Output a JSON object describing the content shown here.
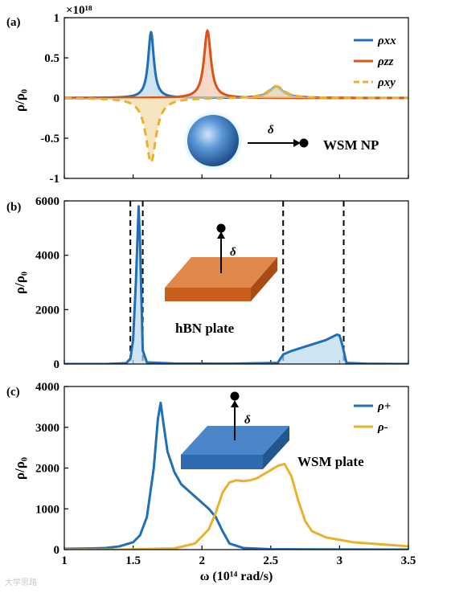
{
  "xlabel": "ω (10¹⁴ rad/s)",
  "watermark": "大学思路",
  "colors": {
    "blue": "#1f6fb8",
    "orange": "#d95319",
    "yellow": "#e8b12e",
    "blue_fill": "#b9d8ee",
    "orange_fill": "#f4c6ad"
  },
  "chart_data": [
    {
      "type": "line",
      "panel_label": "(a)",
      "ylabel": "ρ/ρ₀",
      "scale_label": "×10¹⁸",
      "xlim": [
        1,
        3.5
      ],
      "ylim": [
        -1,
        1
      ],
      "yticks": [
        -1,
        -0.5,
        0,
        0.5,
        1
      ],
      "ytick_labels": [
        "-1",
        "-0.5",
        "0",
        "0.5",
        "1"
      ],
      "legend_position": "top-right",
      "series": [
        {
          "name": "ρxx",
          "color": "#1f6fb8",
          "style": "solid",
          "fill": true,
          "peaks": [
            {
              "x0": 1.63,
              "amp": 0.82,
              "gamma": 0.025
            },
            {
              "x0": 2.54,
              "amp": 0.14,
              "gamma": 0.06
            }
          ]
        },
        {
          "name": "ρzz",
          "color": "#d95319",
          "style": "solid",
          "fill": true,
          "peaks": [
            {
              "x0": 2.04,
              "amp": 0.84,
              "gamma": 0.03
            }
          ]
        },
        {
          "name": "ρxy",
          "color": "#e8b12e",
          "style": "dashed",
          "fill": true,
          "peaks": [
            {
              "x0": 1.63,
              "amp": -0.8,
              "gamma": 0.045
            },
            {
              "x0": 2.54,
              "amp": 0.15,
              "gamma": 0.07
            }
          ]
        }
      ],
      "annotation": {
        "label": "WSM NP",
        "delta": "δ"
      }
    },
    {
      "type": "area",
      "panel_label": "(b)",
      "ylabel": "ρ/ρ₀",
      "xlim": [
        1,
        3.5
      ],
      "ylim": [
        0,
        6000
      ],
      "yticks": [
        0,
        2000,
        4000,
        6000
      ],
      "ytick_labels": [
        "0",
        "2000",
        "4000",
        "6000"
      ],
      "band_edges": [
        1.48,
        1.57,
        2.59,
        3.03
      ],
      "series": [
        {
          "name": "",
          "color": "#1f6fb8",
          "x": [
            1.0,
            1.3,
            1.45,
            1.48,
            1.5,
            1.52,
            1.54,
            1.55,
            1.56,
            1.57,
            1.6,
            1.8,
            2.2,
            2.55,
            2.59,
            2.65,
            2.8,
            2.9,
            2.98,
            3.0,
            3.02,
            3.05,
            3.2,
            3.5
          ],
          "y": [
            0,
            0,
            30,
            200,
            900,
            3000,
            5800,
            4500,
            2500,
            500,
            60,
            20,
            10,
            40,
            350,
            480,
            720,
            880,
            1080,
            1050,
            700,
            40,
            10,
            0
          ]
        }
      ],
      "annotation": {
        "label": "hBN plate",
        "delta": "δ"
      }
    },
    {
      "type": "line",
      "panel_label": "(c)",
      "ylabel": "ρ/ρ₀",
      "xlim": [
        1,
        3.5
      ],
      "ylim": [
        0,
        4000
      ],
      "yticks": [
        0,
        1000,
        2000,
        3000,
        4000
      ],
      "ytick_labels": [
        "0",
        "1000",
        "2000",
        "3000",
        "4000"
      ],
      "xticks": [
        1,
        1.5,
        2,
        2.5,
        3,
        3.5
      ],
      "xtick_labels": [
        "1",
        "1.5",
        "2",
        "2.5",
        "3",
        "3.5"
      ],
      "legend_position": "top-right",
      "series": [
        {
          "name": "ρ+",
          "color": "#1f6fb8",
          "x": [
            1.0,
            1.2,
            1.3,
            1.4,
            1.5,
            1.55,
            1.6,
            1.65,
            1.68,
            1.7,
            1.72,
            1.75,
            1.8,
            1.85,
            1.9,
            1.95,
            2.0,
            2.05,
            2.1,
            2.15,
            2.2,
            2.3,
            2.5,
            2.8,
            3.5
          ],
          "y": [
            20,
            30,
            40,
            80,
            180,
            350,
            800,
            2000,
            3200,
            3600,
            3100,
            2400,
            1900,
            1600,
            1450,
            1300,
            1150,
            1000,
            800,
            450,
            150,
            40,
            10,
            5,
            0
          ]
        },
        {
          "name": "ρ-",
          "color": "#e8b12e",
          "x": [
            1.0,
            1.4,
            1.8,
            1.95,
            2.05,
            2.1,
            2.15,
            2.2,
            2.25,
            2.3,
            2.35,
            2.4,
            2.45,
            2.5,
            2.55,
            2.6,
            2.65,
            2.7,
            2.75,
            2.8,
            2.9,
            3.1,
            3.5
          ],
          "y": [
            0,
            0,
            30,
            150,
            500,
            900,
            1400,
            1650,
            1700,
            1680,
            1700,
            1750,
            1850,
            1950,
            2050,
            2100,
            1800,
            1200,
            700,
            450,
            300,
            180,
            80
          ]
        }
      ],
      "annotation": {
        "label": "WSM plate",
        "delta": "δ"
      }
    }
  ]
}
